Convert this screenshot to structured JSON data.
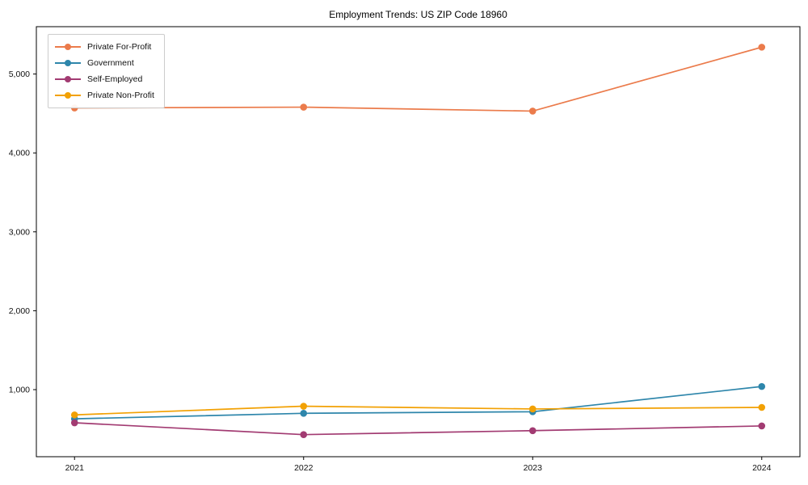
{
  "chart_data": {
    "type": "line",
    "title": "Employment Trends: US ZIP Code 18960",
    "xlabel": "",
    "ylabel": "",
    "categories": [
      "2021",
      "2022",
      "2023",
      "2024"
    ],
    "series": [
      {
        "name": "Private For-Profit",
        "color": "#EB7B4B",
        "values": [
          4570,
          4580,
          4530,
          5340
        ]
      },
      {
        "name": "Government",
        "color": "#2E86AB",
        "values": [
          630,
          700,
          720,
          1040
        ]
      },
      {
        "name": "Self-Employed",
        "color": "#A23B72",
        "values": [
          580,
          430,
          480,
          540
        ]
      },
      {
        "name": "Private Non-Profit",
        "color": "#F2A104",
        "values": [
          680,
          790,
          755,
          775
        ]
      }
    ],
    "ylim": [
      150,
      5600
    ],
    "yticks": [
      {
        "value": 1000,
        "label": "1,000"
      },
      {
        "value": 2000,
        "label": "2,000"
      },
      {
        "value": 3000,
        "label": "3,000"
      },
      {
        "value": 4000,
        "label": "4,000"
      },
      {
        "value": 5000,
        "label": "5,000"
      }
    ],
    "grid": false,
    "legend_position": "upper-left"
  }
}
